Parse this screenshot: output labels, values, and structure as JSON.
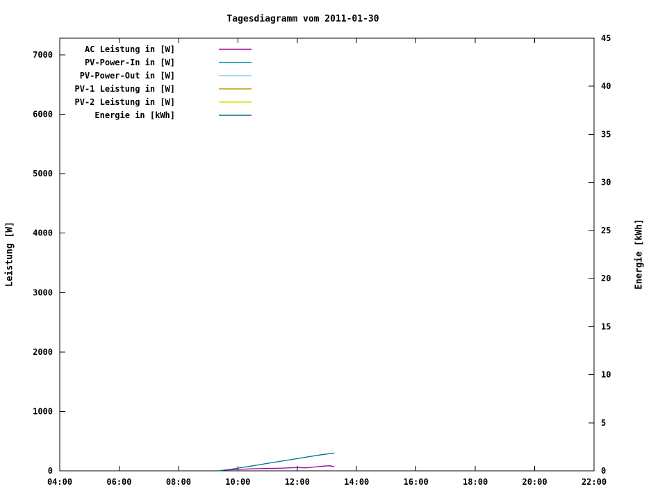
{
  "title": "Tagesdiagramm vom 2011-01-30",
  "chart_data": {
    "type": "line",
    "title": "Tagesdiagramm vom 2011-01-30",
    "grid": false,
    "legend_position": "top-left-inside",
    "x_axis": {
      "label": "",
      "tick_labels": [
        "04:00",
        "06:00",
        "08:00",
        "10:00",
        "12:00",
        "14:00",
        "16:00",
        "18:00",
        "20:00",
        "22:00"
      ],
      "tick_hours": [
        4,
        6,
        8,
        10,
        12,
        14,
        16,
        18,
        20,
        22
      ],
      "range_hours": [
        4,
        22
      ]
    },
    "y_left": {
      "label": "Leistung [W]",
      "ticks": [
        0,
        1000,
        2000,
        3000,
        4000,
        5000,
        6000,
        7000
      ],
      "range": [
        0,
        7280
      ]
    },
    "y_right": {
      "label": "Energie [kWh]",
      "ticks": [
        0,
        5,
        10,
        15,
        20,
        25,
        30,
        35,
        40,
        45
      ],
      "range": [
        0,
        45
      ]
    },
    "series": [
      {
        "name": "AC Leistung in [W]",
        "color": "#a000a0",
        "axis": "left",
        "points": [
          [
            9.5,
            10
          ],
          [
            10.0,
            25
          ],
          [
            10.5,
            35
          ],
          [
            11.0,
            40
          ],
          [
            11.5,
            45
          ],
          [
            12.0,
            55
          ],
          [
            12.3,
            50
          ],
          [
            12.6,
            65
          ],
          [
            12.9,
            80
          ],
          [
            13.1,
            85
          ],
          [
            13.25,
            70
          ]
        ]
      },
      {
        "name": "PV-Power-In in [W]",
        "color": "#008b8b",
        "axis": "left",
        "points": []
      },
      {
        "name": "PV-Power-Out in [W]",
        "color": "#87ceeb",
        "axis": "left",
        "points": []
      },
      {
        "name": "PV-1 Leistung in [W]",
        "color": "#cc9900",
        "axis": "left",
        "points": []
      },
      {
        "name": "PV-2 Leistung in [W]",
        "color": "#dcdc00",
        "axis": "left",
        "points": []
      },
      {
        "name": "Energie in [kWh]",
        "color": "#006b8f",
        "axis": "right",
        "points": [
          [
            9.33,
            0
          ],
          [
            9.75,
            0.15
          ],
          [
            10.25,
            0.4
          ],
          [
            10.75,
            0.65
          ],
          [
            11.25,
            0.9
          ],
          [
            11.75,
            1.15
          ],
          [
            12.25,
            1.4
          ],
          [
            12.75,
            1.65
          ],
          [
            13.25,
            1.85
          ]
        ]
      }
    ]
  }
}
